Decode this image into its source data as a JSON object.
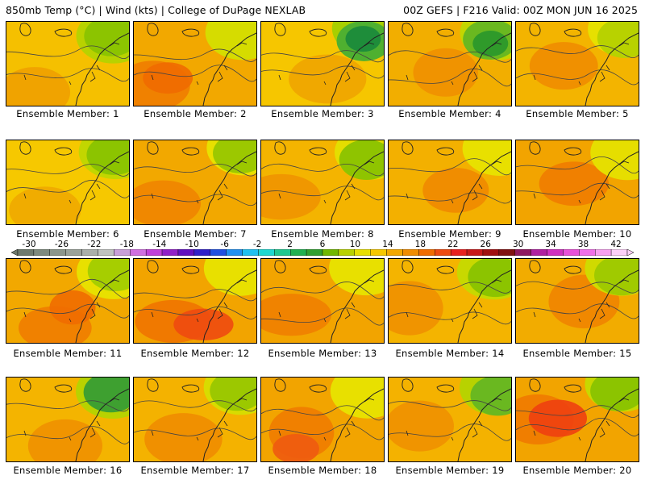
{
  "header": {
    "left": "850mb Temp (°C) | Wind (kts) | College of DuPage NEXLAB",
    "right": "00Z GEFS | F216 Valid: 00Z MON JUN 16 2025"
  },
  "member_label_prefix": "Ensemble Member:",
  "members": [
    {
      "id": "1",
      "base": "#f5c000",
      "warm": [
        "#f0a000"
      ],
      "cool": [
        "#b8d200",
        "#8cc400"
      ],
      "coolTopRight": true
    },
    {
      "id": "2",
      "base": "#f2a800",
      "warm": [
        "#f07c00",
        "#f06a00"
      ],
      "cool": [
        "#d6dc00"
      ],
      "coolTopRight": false
    },
    {
      "id": "3",
      "base": "#f6c600",
      "warm": [
        "#f0a400"
      ],
      "cool": [
        "#a8cf00",
        "#4fb030",
        "#1e8d3a"
      ],
      "coolTopRight": true
    },
    {
      "id": "4",
      "base": "#f2ae00",
      "warm": [
        "#f09000"
      ],
      "cool": [
        "#c4d600",
        "#6ab820",
        "#2f9a2a"
      ],
      "coolTopRight": true
    },
    {
      "id": "5",
      "base": "#f3b400",
      "warm": [
        "#f08c00"
      ],
      "cool": [
        "#e6e000",
        "#b8d200"
      ],
      "coolTopRight": true
    },
    {
      "id": "6",
      "base": "#f6c800",
      "warm": [
        "#f0a800"
      ],
      "cool": [
        "#c2d600",
        "#8cc400"
      ],
      "coolTopRight": true
    },
    {
      "id": "7",
      "base": "#f2a800",
      "warm": [
        "#f08400"
      ],
      "cool": [
        "#e8e000",
        "#9cc800"
      ],
      "coolTopRight": true
    },
    {
      "id": "8",
      "base": "#f4b400",
      "warm": [
        "#f09400"
      ],
      "cool": [
        "#e4de00",
        "#8fc400"
      ],
      "coolTopRight": true
    },
    {
      "id": "9",
      "base": "#f3b000",
      "warm": [
        "#f08a00"
      ],
      "cool": [
        "#e8e000"
      ],
      "coolTopRight": true
    },
    {
      "id": "10",
      "base": "#f2a400",
      "warm": [
        "#f07c00"
      ],
      "cool": [
        "#e6de00"
      ],
      "coolTopRight": true
    },
    {
      "id": "11",
      "base": "#f2a800",
      "warm": [
        "#f07c00",
        "#f06c00"
      ],
      "cool": [
        "#e8e000",
        "#a6ce00"
      ],
      "coolTopRight": true
    },
    {
      "id": "12",
      "base": "#f2a400",
      "warm": [
        "#f07400",
        "#ee4a10"
      ],
      "cool": [
        "#e8e000"
      ],
      "coolTopRight": true
    },
    {
      "id": "13",
      "base": "#f2a400",
      "warm": [
        "#f08000"
      ],
      "cool": [
        "#e8e000"
      ],
      "coolTopRight": true
    },
    {
      "id": "14",
      "base": "#f4b400",
      "warm": [
        "#f09000"
      ],
      "cool": [
        "#c8d800",
        "#8cc400"
      ],
      "coolTopRight": true
    },
    {
      "id": "15",
      "base": "#f2ac00",
      "warm": [
        "#f08400"
      ],
      "cool": [
        "#d0da00",
        "#a0ca00"
      ],
      "coolTopRight": true
    },
    {
      "id": "16",
      "base": "#f4b400",
      "warm": [
        "#f09000"
      ],
      "cool": [
        "#b8d200",
        "#3ea030"
      ],
      "coolTopRight": true
    },
    {
      "id": "17",
      "base": "#f4b200",
      "warm": [
        "#f08c00"
      ],
      "cool": [
        "#d8dc00",
        "#9cc800"
      ],
      "coolTopRight": true
    },
    {
      "id": "18",
      "base": "#f2a400",
      "warm": [
        "#f07c00",
        "#ee5a10"
      ],
      "cool": [
        "#e8e000"
      ],
      "coolTopRight": true
    },
    {
      "id": "19",
      "base": "#f4b200",
      "warm": [
        "#f09000"
      ],
      "cool": [
        "#b8d200",
        "#6ab820"
      ],
      "coolTopRight": true
    },
    {
      "id": "20",
      "base": "#f2a400",
      "warm": [
        "#f07a00",
        "#ee4010"
      ],
      "cool": [
        "#c8d800",
        "#8cc400"
      ],
      "coolTopRight": true
    }
  ],
  "colorbar": {
    "ticks": [
      "-30",
      "-26",
      "-22",
      "-18",
      "-14",
      "-10",
      "-6",
      "-2",
      "2",
      "6",
      "10",
      "14",
      "18",
      "22",
      "26",
      "30",
      "34",
      "38",
      "42"
    ],
    "colors": [
      "#6e7a6e",
      "#7e8a7e",
      "#8c968c",
      "#9aa29a",
      "#aab0aa",
      "#c0c4c0",
      "#c8a0d8",
      "#d070e0",
      "#c040d8",
      "#9020c8",
      "#6010c0",
      "#3020c8",
      "#2050e0",
      "#2090f0",
      "#20c0f0",
      "#20d8d0",
      "#20c890",
      "#20b050",
      "#30a030",
      "#70b800",
      "#b8d200",
      "#e8e000",
      "#f6c800",
      "#f2a800",
      "#f08c00",
      "#f06c00",
      "#ee4a10",
      "#e82020",
      "#c81818",
      "#a01010",
      "#801010",
      "#901860",
      "#b020a0",
      "#d030c0",
      "#e850d8",
      "#f070e8",
      "#f8a0f0",
      "#fcd0f8"
    ]
  }
}
